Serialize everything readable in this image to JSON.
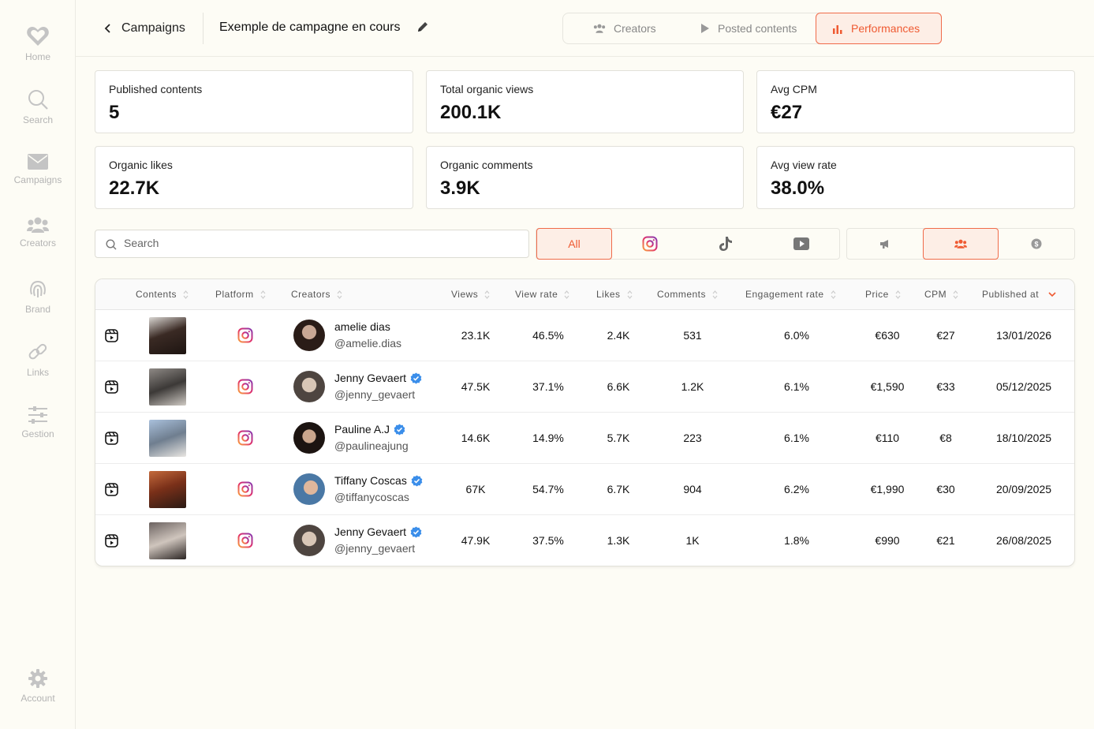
{
  "sidebar": {
    "items": [
      {
        "label": "Home",
        "icon": "heart-icon"
      },
      {
        "label": "Search",
        "icon": "search-icon"
      },
      {
        "label": "Campaigns",
        "icon": "mail-icon"
      },
      {
        "label": "Creators",
        "icon": "users-icon"
      },
      {
        "label": "Brand",
        "icon": "fingerprint-icon"
      },
      {
        "label": "Links",
        "icon": "link-icon"
      },
      {
        "label": "Gestion",
        "icon": "sliders-icon"
      }
    ],
    "account": {
      "label": "Account",
      "icon": "gear-icon"
    }
  },
  "header": {
    "back_label": "Campaigns",
    "campaign_title": "Exemple de campagne en cours",
    "tabs": [
      {
        "label": "Creators",
        "icon": "users-icon"
      },
      {
        "label": "Posted contents",
        "icon": "play-icon"
      },
      {
        "label": "Performances",
        "icon": "bar-chart-icon",
        "active": true
      }
    ]
  },
  "stats": [
    {
      "label": "Published contents",
      "value": "5"
    },
    {
      "label": "Total organic views",
      "value": "200.1K"
    },
    {
      "label": "Avg CPM",
      "value": "€27"
    },
    {
      "label": "Organic likes",
      "value": "22.7K"
    },
    {
      "label": "Organic comments",
      "value": "3.9K"
    },
    {
      "label": "Avg view rate",
      "value": "38.0%"
    }
  ],
  "filters": {
    "search_placeholder": "Search",
    "platforms": [
      {
        "label": "All",
        "active": true
      },
      {
        "icon": "instagram-icon"
      },
      {
        "icon": "tiktok-icon"
      },
      {
        "icon": "youtube-icon"
      }
    ],
    "types": [
      {
        "icon": "megaphone-icon"
      },
      {
        "icon": "users-icon",
        "active": true
      },
      {
        "icon": "dollar-icon"
      }
    ]
  },
  "table": {
    "columns": [
      "Contents",
      "Platform",
      "Creators",
      "Views",
      "View rate",
      "Likes",
      "Comments",
      "Engagement rate",
      "Price",
      "CPM",
      "Published at"
    ],
    "rows": [
      {
        "name": "amelie dias",
        "handle": "@amelie.dias",
        "verified": false,
        "views": "23.1K",
        "view_rate": "46.5%",
        "likes": "2.4K",
        "comments": "531",
        "engagement": "6.0%",
        "price": "€630",
        "cpm": "€27",
        "published": "13/01/2026"
      },
      {
        "name": "Jenny Gevaert",
        "handle": "@jenny_gevaert",
        "verified": true,
        "views": "47.5K",
        "view_rate": "37.1%",
        "likes": "6.6K",
        "comments": "1.2K",
        "engagement": "6.1%",
        "price": "€1,590",
        "cpm": "€33",
        "published": "05/12/2025"
      },
      {
        "name": "Pauline A.J",
        "handle": "@paulineajung",
        "verified": true,
        "views": "14.6K",
        "view_rate": "14.9%",
        "likes": "5.7K",
        "comments": "223",
        "engagement": "6.1%",
        "price": "€110",
        "cpm": "€8",
        "published": "18/10/2025"
      },
      {
        "name": "Tiffany Coscas",
        "handle": "@tiffanycoscas",
        "verified": true,
        "views": "67K",
        "view_rate": "54.7%",
        "likes": "6.7K",
        "comments": "904",
        "engagement": "6.2%",
        "price": "€1,990",
        "cpm": "€30",
        "published": "20/09/2025"
      },
      {
        "name": "Jenny Gevaert",
        "handle": "@jenny_gevaert",
        "verified": true,
        "views": "47.9K",
        "view_rate": "37.5%",
        "likes": "1.3K",
        "comments": "1K",
        "engagement": "1.8%",
        "price": "€990",
        "cpm": "€21",
        "published": "26/08/2025"
      }
    ]
  },
  "colors": {
    "accent": "#ef5a32",
    "accent_bg": "#fdeee6",
    "verified": "#3b8eea"
  }
}
